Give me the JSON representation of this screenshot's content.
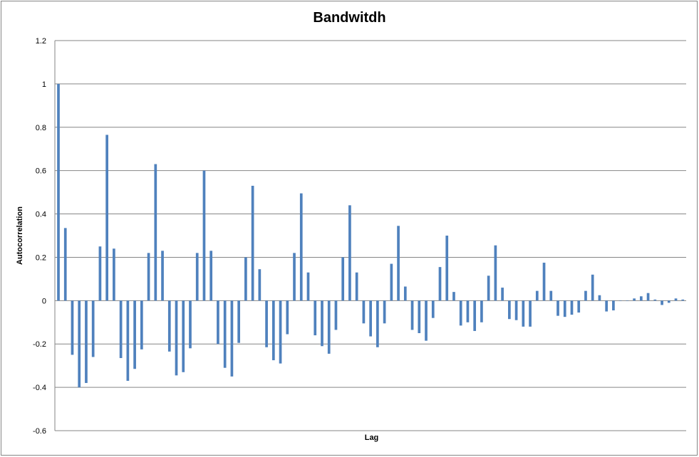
{
  "chart_data": {
    "type": "bar",
    "title": "Bandwitdh",
    "xlabel": "Lag",
    "ylabel": "Autocorrelation",
    "ylim": [
      -0.6,
      1.2
    ],
    "yticks": [
      "1.2",
      "1",
      "0.8",
      "0.6",
      "0.4",
      "0.2",
      "0",
      "-0.2",
      "-0.4",
      "-0.6"
    ],
    "ytick_values": [
      1.2,
      1,
      0.8,
      0.6,
      0.4,
      0.2,
      0,
      -0.2,
      -0.4,
      -0.6
    ],
    "grid": true,
    "bar_color": "#4f81bd",
    "values": [
      1.0,
      0.335,
      -0.25,
      -0.4,
      -0.38,
      -0.26,
      0.25,
      0.765,
      0.24,
      -0.265,
      -0.37,
      -0.315,
      -0.225,
      0.22,
      0.63,
      0.23,
      -0.235,
      -0.345,
      -0.33,
      -0.22,
      0.22,
      0.6,
      0.23,
      -0.2,
      -0.31,
      -0.35,
      -0.195,
      0.2,
      0.53,
      0.145,
      -0.215,
      -0.275,
      -0.29,
      -0.155,
      0.22,
      0.495,
      0.13,
      -0.16,
      -0.21,
      -0.245,
      -0.135,
      0.2,
      0.44,
      0.13,
      -0.105,
      -0.165,
      -0.215,
      -0.105,
      0.17,
      0.345,
      0.065,
      -0.135,
      -0.15,
      -0.185,
      -0.08,
      0.155,
      0.3,
      0.04,
      -0.115,
      -0.1,
      -0.14,
      -0.1,
      0.115,
      0.255,
      0.06,
      -0.085,
      -0.09,
      -0.12,
      -0.12,
      0.045,
      0.175,
      0.045,
      -0.07,
      -0.075,
      -0.065,
      -0.055,
      0.045,
      0.12,
      0.025,
      -0.05,
      -0.045,
      0.0,
      0.0,
      0.01,
      0.02,
      0.035,
      0.005,
      -0.02,
      -0.01,
      0.01,
      0.005
    ]
  }
}
